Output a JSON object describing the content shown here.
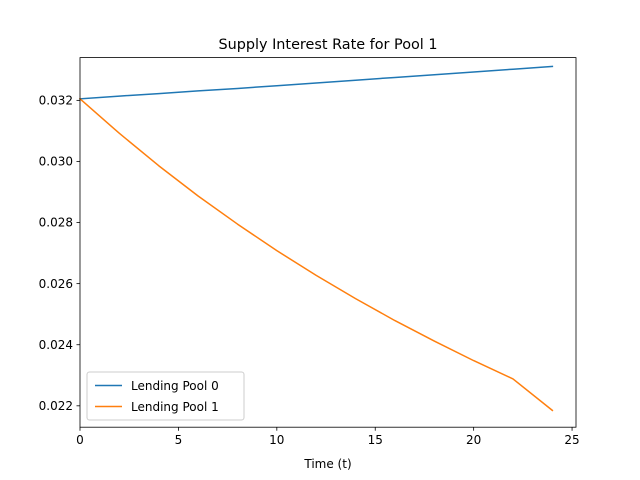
{
  "chart_data": {
    "type": "line",
    "title": "Supply Interest Rate for Pool 1",
    "xlabel": "Time (t)",
    "ylabel": "",
    "xlim": [
      0,
      25.2
    ],
    "ylim": [
      0.0213,
      0.0334
    ],
    "xticks": [
      0,
      5,
      10,
      15,
      20,
      25
    ],
    "yticks": [
      0.022,
      0.024,
      0.026,
      0.028,
      0.03,
      0.032
    ],
    "xtick_labels": [
      "0",
      "5",
      "10",
      "15",
      "20",
      "25"
    ],
    "ytick_labels": [
      "0.022",
      "0.024",
      "0.026",
      "0.028",
      "0.030",
      "0.032"
    ],
    "grid": false,
    "legend_position": "lower-left",
    "x": [
      0,
      2,
      4,
      6,
      8,
      10,
      12,
      14,
      16,
      18,
      20,
      22,
      24
    ],
    "series": [
      {
        "name": "Lending Pool 0",
        "color": "#1f77b4",
        "values": [
          0.03205,
          0.03214,
          0.03222,
          0.03231,
          0.03239,
          0.03248,
          0.03257,
          0.03266,
          0.03275,
          0.03284,
          0.03293,
          0.03302,
          0.03311
        ]
      },
      {
        "name": "Lending Pool 1",
        "color": "#ff7f0e",
        "values": [
          0.03205,
          0.03092,
          0.02986,
          0.02887,
          0.02795,
          0.02708,
          0.02627,
          0.02551,
          0.02479,
          0.02412,
          0.02348,
          0.02288,
          0.02185
        ]
      }
    ]
  }
}
